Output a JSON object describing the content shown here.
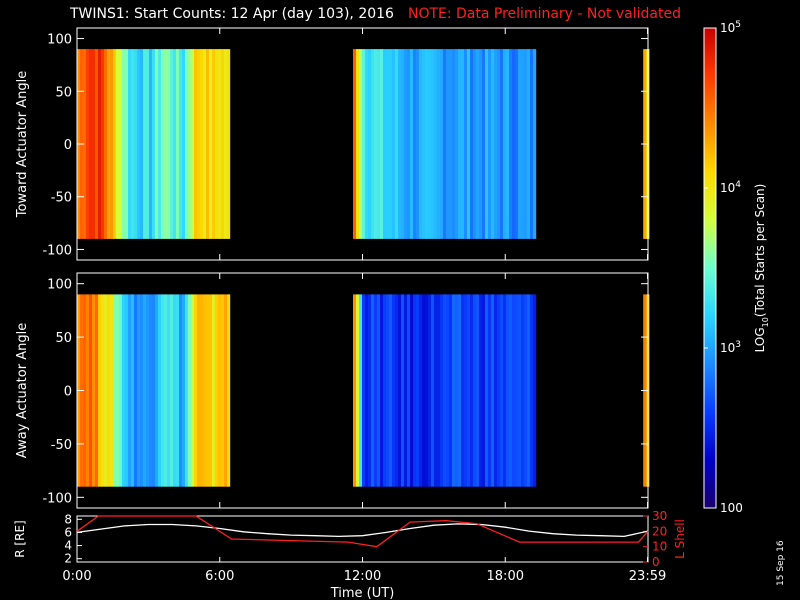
{
  "title": {
    "main": "TWINS1: Start Counts: 12 Apr (day 103), 2016",
    "note": "NOTE: Data Preliminary - Not validated"
  },
  "stamp": "15 Sep 16",
  "colors": {
    "background": "#000000",
    "axes": "#ffffff",
    "note": "#ff2020",
    "r_line": "#ffffff",
    "lshell_line": "#ff2020"
  },
  "chart_data": [
    {
      "type": "heatmap",
      "name": "toward-panel",
      "ylabel": "Toward Actuator Angle",
      "ylim": [
        -110,
        110
      ],
      "yticks": [
        100,
        50,
        0,
        -50,
        -100
      ],
      "xlim": [
        0,
        24
      ],
      "angle_range": [
        -90,
        90
      ],
      "data_segments_hours": [
        [
          0,
          6.4
        ],
        [
          11.6,
          19.2
        ],
        [
          23.8,
          24
        ]
      ],
      "profile": [
        {
          "t": 0.0,
          "v": 4.4
        },
        {
          "t": 0.4,
          "v": 4.8
        },
        {
          "t": 1.0,
          "v": 4.7
        },
        {
          "t": 1.6,
          "v": 4.0
        },
        {
          "t": 2.2,
          "v": 3.3
        },
        {
          "t": 3.0,
          "v": 3.2
        },
        {
          "t": 3.6,
          "v": 3.6
        },
        {
          "t": 4.4,
          "v": 3.3
        },
        {
          "t": 5.0,
          "v": 4.2
        },
        {
          "t": 5.6,
          "v": 4.0
        },
        {
          "t": 6.0,
          "v": 4.1
        },
        {
          "t": 6.4,
          "v": 3.9
        },
        {
          "t": 11.6,
          "v": 4.5
        },
        {
          "t": 12.0,
          "v": 3.4
        },
        {
          "t": 14.0,
          "v": 3.0
        },
        {
          "t": 16.0,
          "v": 3.0
        },
        {
          "t": 19.2,
          "v": 2.9
        },
        {
          "t": 23.8,
          "v": 4.4
        },
        {
          "t": 24.0,
          "v": 4.0
        }
      ]
    },
    {
      "type": "heatmap",
      "name": "away-panel",
      "ylabel": "Away Actuator Angle",
      "ylim": [
        -110,
        110
      ],
      "yticks": [
        100,
        50,
        0,
        -50,
        -100
      ],
      "xlim": [
        0,
        24
      ],
      "angle_range": [
        -90,
        90
      ],
      "data_segments_hours": [
        [
          0,
          6.4
        ],
        [
          11.6,
          19.2
        ],
        [
          23.8,
          24
        ]
      ],
      "profile": [
        {
          "t": 0.0,
          "v": 4.5
        },
        {
          "t": 0.4,
          "v": 4.6
        },
        {
          "t": 1.0,
          "v": 4.2
        },
        {
          "t": 1.6,
          "v": 3.6
        },
        {
          "t": 2.2,
          "v": 3.0
        },
        {
          "t": 3.0,
          "v": 2.9
        },
        {
          "t": 3.6,
          "v": 3.5
        },
        {
          "t": 4.4,
          "v": 3.0
        },
        {
          "t": 5.0,
          "v": 4.2
        },
        {
          "t": 5.6,
          "v": 4.0
        },
        {
          "t": 6.0,
          "v": 4.3
        },
        {
          "t": 6.4,
          "v": 4.0
        },
        {
          "t": 11.6,
          "v": 4.4
        },
        {
          "t": 12.0,
          "v": 2.6
        },
        {
          "t": 14.0,
          "v": 2.5
        },
        {
          "t": 16.0,
          "v": 2.6
        },
        {
          "t": 19.2,
          "v": 2.6
        },
        {
          "t": 23.8,
          "v": 4.4
        },
        {
          "t": 24.0,
          "v": 4.0
        }
      ]
    },
    {
      "type": "line",
      "name": "ephemeris-panel",
      "xlabel": "Time (UT)",
      "xlim": [
        0,
        24
      ],
      "xticks": [
        0,
        6,
        12,
        18,
        23.98
      ],
      "xticklabels": [
        "0:00",
        "6:00",
        "12:00",
        "18:00",
        "23:59"
      ],
      "y_left": {
        "label": "R [RE]",
        "ticks": [
          2,
          4,
          6,
          8
        ],
        "ylim": [
          1.5,
          8.5
        ]
      },
      "y_right": {
        "label": "L Shell",
        "ticks": [
          0,
          10,
          20,
          30
        ],
        "ylim": [
          0,
          30
        ]
      },
      "series": [
        {
          "name": "R [RE]",
          "axis": "left",
          "color": "#ffffff",
          "x": [
            0,
            1,
            2,
            3,
            4,
            5,
            6,
            7,
            8,
            9,
            10,
            11,
            12,
            13,
            14,
            15,
            16,
            17,
            18,
            19,
            20,
            21,
            22,
            23,
            24
          ],
          "y": [
            6.0,
            6.5,
            7.0,
            7.2,
            7.2,
            7.0,
            6.6,
            6.1,
            5.8,
            5.6,
            5.5,
            5.4,
            5.5,
            6.0,
            6.6,
            7.1,
            7.3,
            7.2,
            6.8,
            6.2,
            5.8,
            5.6,
            5.5,
            5.4,
            6.2
          ]
        },
        {
          "name": "L Shell",
          "axis": "right",
          "color": "#ff2020",
          "x": [
            0,
            0.9,
            5.0,
            6.5,
            11.4,
            12.6,
            14.0,
            15.5,
            16.8,
            18.6,
            23.6,
            24
          ],
          "y": [
            20,
            30,
            30,
            15,
            13,
            10,
            26,
            27,
            25,
            13,
            13,
            20
          ]
        }
      ]
    },
    {
      "type": "colorbar",
      "name": "colorbar",
      "label": "LOG10(Total Starts per Scan)",
      "scale": "log",
      "range": [
        100,
        100000
      ],
      "ticks": [
        {
          "value": 100000,
          "label": "10^5"
        },
        {
          "value": 10000,
          "label": "10^4"
        },
        {
          "value": 1000,
          "label": "10^3"
        },
        {
          "value": 100,
          "label": "100"
        }
      ],
      "colormap": [
        "#1a006e",
        "#0000c8",
        "#0a3cff",
        "#1c8cff",
        "#2ad4ff",
        "#6cffd0",
        "#d2ff3c",
        "#ffd800",
        "#ff8a00",
        "#ff3a00",
        "#c80000"
      ]
    }
  ]
}
